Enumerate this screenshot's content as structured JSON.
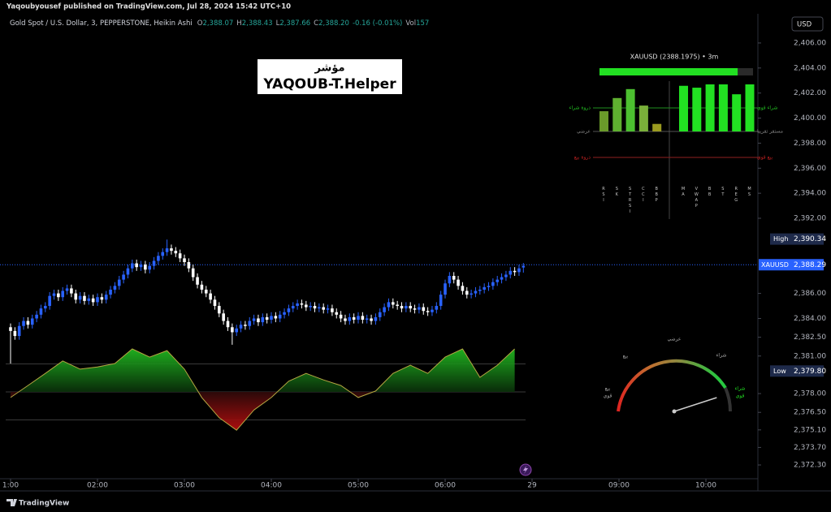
{
  "header": {
    "published": "Yaqoubyousef published on TradingView.com, Jul 28, 2024 15:42 UTC+10",
    "symbol": "Gold Spot / U.S. Dollar, 3, PEPPERSTONE, Heikin Ashi",
    "ohlc": [
      {
        "key": "O",
        "value": "2,388.07"
      },
      {
        "key": "H",
        "value": "2,388.43"
      },
      {
        "key": "L",
        "value": "2,387.66"
      },
      {
        "key": "C",
        "value": "2,388.20"
      }
    ],
    "change": "-0.16 (-0.01%)",
    "volume": {
      "key": "Vol",
      "value": "157"
    }
  },
  "currency": "USD",
  "footer": {
    "brand": "TradingView"
  },
  "chart_data": {
    "type": "candlestick",
    "up_color": "#2962ff",
    "down_color": "#ffffff",
    "x": [
      0,
      1,
      2,
      3,
      4,
      5,
      6,
      7,
      8,
      9,
      10,
      11,
      12,
      13,
      14,
      15,
      16,
      17,
      18,
      19,
      20,
      21,
      22,
      23,
      24,
      25,
      26,
      27,
      28,
      29,
      30,
      31,
      32,
      33,
      34,
      35,
      36,
      37,
      38,
      39,
      40,
      41,
      42,
      43,
      44,
      45,
      46,
      47,
      48,
      49,
      50,
      51,
      52,
      53,
      54,
      55,
      56,
      57,
      58,
      59,
      60,
      61,
      62,
      63,
      64,
      65,
      66,
      67,
      68,
      69,
      70,
      71,
      72,
      73,
      74,
      75,
      76,
      77,
      78,
      79,
      80,
      81,
      82,
      83,
      84,
      85,
      86,
      87,
      88,
      89,
      90,
      91,
      92,
      93,
      94,
      95,
      96,
      97,
      98,
      99,
      100,
      101,
      102,
      103,
      104,
      105,
      106,
      107,
      108,
      109,
      110,
      111,
      112,
      113,
      114,
      115,
      116,
      117,
      118
    ],
    "open": [
      2383.3,
      2383.0,
      2382.6,
      2383.4,
      2383.8,
      2383.5,
      2384.0,
      2384.3,
      2384.8,
      2385.0,
      2385.8,
      2386.0,
      2385.7,
      2386.2,
      2386.4,
      2386.0,
      2385.5,
      2385.8,
      2385.4,
      2385.6,
      2385.3,
      2385.7,
      2385.5,
      2385.9,
      2386.3,
      2386.6,
      2387.1,
      2387.5,
      2388.0,
      2388.4,
      2388.1,
      2388.3,
      2387.9,
      2388.2,
      2388.6,
      2389.0,
      2389.3,
      2389.6,
      2389.4,
      2389.2,
      2388.8,
      2388.5,
      2388.0,
      2387.3,
      2386.7,
      2386.3,
      2386.0,
      2385.5,
      2385.0,
      2384.4,
      2383.8,
      2383.3,
      2382.9,
      2383.2,
      2383.5,
      2383.4,
      2383.8,
      2384.0,
      2383.7,
      2384.1,
      2383.9,
      2384.2,
      2384.0,
      2384.3,
      2384.5,
      2384.8,
      2385.0,
      2385.2,
      2385.1,
      2384.9,
      2385.0,
      2384.8,
      2384.9,
      2384.7,
      2384.8,
      2384.5,
      2384.3,
      2384.0,
      2383.8,
      2384.1,
      2383.9,
      2384.2,
      2383.9,
      2384.0,
      2383.8,
      2384.1,
      2384.5,
      2384.9,
      2385.3,
      2385.1,
      2385.0,
      2384.8,
      2385.0,
      2384.8,
      2384.7,
      2384.9,
      2384.6,
      2384.5,
      2384.7,
      2385.0,
      2385.9,
      2386.8,
      2387.4,
      2387.1,
      2386.6,
      2386.2,
      2385.9,
      2386.0,
      2386.2,
      2386.3,
      2386.5,
      2386.6,
      2386.9,
      2387.1,
      2387.3,
      2387.5,
      2387.8,
      2387.7,
      2388.07
    ],
    "high": [
      2383.6,
      2383.3,
      2383.7,
      2384.1,
      2384.1,
      2384.3,
      2384.6,
      2385.1,
      2385.3,
      2386.1,
      2386.3,
      2386.3,
      2386.5,
      2386.7,
      2386.7,
      2386.3,
      2386.1,
      2386.1,
      2385.9,
      2385.9,
      2386.0,
      2386.0,
      2386.2,
      2386.6,
      2386.9,
      2387.4,
      2387.8,
      2388.3,
      2388.7,
      2388.7,
      2388.6,
      2388.6,
      2388.5,
      2388.9,
      2389.3,
      2389.6,
      2390.3,
      2389.9,
      2389.7,
      2389.5,
      2389.1,
      2388.8,
      2388.3,
      2387.6,
      2387.0,
      2386.6,
      2386.3,
      2385.8,
      2385.3,
      2384.7,
      2384.1,
      2383.6,
      2383.5,
      2383.8,
      2383.8,
      2384.1,
      2384.3,
      2384.3,
      2384.4,
      2384.4,
      2384.5,
      2384.5,
      2384.6,
      2384.8,
      2385.1,
      2385.3,
      2385.5,
      2385.5,
      2385.4,
      2385.3,
      2385.3,
      2385.2,
      2385.2,
      2385.1,
      2385.1,
      2384.8,
      2384.6,
      2384.3,
      2384.4,
      2384.4,
      2384.5,
      2384.5,
      2384.3,
      2384.3,
      2384.4,
      2384.8,
      2385.2,
      2385.6,
      2385.6,
      2385.4,
      2385.3,
      2385.3,
      2385.3,
      2385.1,
      2385.2,
      2385.2,
      2384.9,
      2385.0,
      2385.3,
      2386.2,
      2387.1,
      2387.7,
      2387.7,
      2387.4,
      2386.9,
      2386.5,
      2386.3,
      2386.5,
      2386.6,
      2386.8,
      2386.9,
      2387.2,
      2387.4,
      2387.6,
      2387.8,
      2388.1,
      2388.1,
      2388.3,
      2388.43
    ],
    "low": [
      2380.4,
      2382.3,
      2382.3,
      2383.1,
      2383.2,
      2383.2,
      2383.7,
      2384.0,
      2384.5,
      2384.7,
      2385.5,
      2385.4,
      2385.4,
      2385.9,
      2385.7,
      2385.2,
      2385.2,
      2385.1,
      2385.1,
      2385.0,
      2385.0,
      2385.2,
      2385.2,
      2385.6,
      2386.0,
      2386.3,
      2386.8,
      2387.2,
      2387.7,
      2387.8,
      2387.8,
      2387.6,
      2387.6,
      2387.9,
      2388.3,
      2388.7,
      2389.0,
      2389.1,
      2388.9,
      2388.5,
      2388.2,
      2387.7,
      2387.0,
      2386.4,
      2386.0,
      2385.7,
      2385.2,
      2384.7,
      2384.1,
      2383.5,
      2383.0,
      2381.9,
      2382.6,
      2382.9,
      2383.1,
      2383.1,
      2383.5,
      2383.4,
      2383.4,
      2383.6,
      2383.6,
      2383.7,
      2383.7,
      2384.0,
      2384.2,
      2384.5,
      2384.7,
      2384.8,
      2384.6,
      2384.6,
      2384.5,
      2384.5,
      2384.4,
      2384.4,
      2384.2,
      2384.0,
      2383.7,
      2383.5,
      2383.5,
      2383.6,
      2383.6,
      2383.6,
      2383.6,
      2383.5,
      2383.5,
      2383.8,
      2384.2,
      2384.6,
      2384.8,
      2384.7,
      2384.5,
      2384.5,
      2384.5,
      2384.4,
      2384.4,
      2384.3,
      2384.2,
      2384.2,
      2384.4,
      2384.7,
      2385.6,
      2386.5,
      2386.8,
      2386.3,
      2385.9,
      2385.6,
      2385.6,
      2385.7,
      2385.9,
      2386.0,
      2386.2,
      2386.3,
      2386.6,
      2386.8,
      2387.0,
      2387.2,
      2387.4,
      2387.4,
      2387.66
    ],
    "close": [
      2383.0,
      2382.6,
      2383.4,
      2383.8,
      2383.5,
      2384.0,
      2384.3,
      2384.8,
      2385.0,
      2385.8,
      2386.0,
      2385.7,
      2386.2,
      2386.4,
      2386.0,
      2385.5,
      2385.8,
      2385.4,
      2385.6,
      2385.3,
      2385.7,
      2385.5,
      2385.9,
      2386.3,
      2386.6,
      2387.1,
      2387.5,
      2388.0,
      2388.4,
      2388.1,
      2388.3,
      2387.9,
      2388.2,
      2388.6,
      2389.0,
      2389.3,
      2389.6,
      2389.4,
      2389.2,
      2388.8,
      2388.5,
      2388.0,
      2387.3,
      2386.7,
      2386.3,
      2386.0,
      2385.5,
      2385.0,
      2384.4,
      2383.8,
      2383.3,
      2382.9,
      2383.2,
      2383.5,
      2383.4,
      2383.8,
      2384.0,
      2383.7,
      2384.1,
      2383.9,
      2384.2,
      2384.0,
      2384.3,
      2384.5,
      2384.8,
      2385.0,
      2385.2,
      2385.1,
      2384.9,
      2385.0,
      2384.8,
      2384.9,
      2384.7,
      2384.8,
      2384.5,
      2384.3,
      2384.0,
      2383.8,
      2384.1,
      2383.9,
      2384.2,
      2383.9,
      2384.0,
      2383.8,
      2384.1,
      2384.5,
      2384.9,
      2385.3,
      2385.1,
      2385.0,
      2384.8,
      2385.0,
      2384.8,
      2384.7,
      2384.9,
      2384.6,
      2384.5,
      2384.7,
      2385.0,
      2385.9,
      2386.8,
      2387.4,
      2387.1,
      2386.6,
      2386.2,
      2385.9,
      2386.0,
      2386.2,
      2386.3,
      2386.5,
      2386.6,
      2386.9,
      2387.1,
      2387.3,
      2387.5,
      2387.8,
      2387.7,
      2388.0,
      2388.2
    ],
    "xlim": [
      -2.43,
      171.96
    ],
    "xticks": [
      {
        "value": 0,
        "label": "1:00"
      },
      {
        "value": 20,
        "label": "02:00"
      },
      {
        "value": 40,
        "label": "03:00"
      },
      {
        "value": 60,
        "label": "04:00"
      },
      {
        "value": 80,
        "label": "05:00"
      },
      {
        "value": 100,
        "label": "06:00"
      },
      {
        "value": 120,
        "label": "29"
      },
      {
        "value": 140,
        "label": "09:00"
      },
      {
        "value": 160,
        "label": "10:00"
      }
    ],
    "ylim": [
      2371.2,
      2408.33
    ],
    "yticks": [
      {
        "value": 2406,
        "label": "2,406.00"
      },
      {
        "value": 2404,
        "label": "2,404.00"
      },
      {
        "value": 2402,
        "label": "2,402.00"
      },
      {
        "value": 2400,
        "label": "2,400.00"
      },
      {
        "value": 2398,
        "label": "2,398.00"
      },
      {
        "value": 2396,
        "label": "2,396.00"
      },
      {
        "value": 2394,
        "label": "2,394.00"
      },
      {
        "value": 2392,
        "label": "2,392.00"
      },
      {
        "value": 2386,
        "label": "2,386.00"
      },
      {
        "value": 2384,
        "label": "2,384.00"
      },
      {
        "value": 2382.5,
        "label": "2,382.50"
      },
      {
        "value": 2381,
        "label": "2,381.00"
      },
      {
        "value": 2378,
        "label": "2,378.00"
      },
      {
        "value": 2376.5,
        "label": "2,376.50"
      },
      {
        "value": 2375.1,
        "label": "2,375.10"
      },
      {
        "value": 2373.7,
        "label": "2,373.70"
      },
      {
        "value": 2372.3,
        "label": "2,372.30"
      }
    ],
    "last_price": {
      "symbol": "XAUUSD",
      "price": {
        "value": 2388.29,
        "label": "2,388.29"
      }
    },
    "high_marker": {
      "label": "High",
      "price": {
        "value": 2390.34,
        "label": "2,390.34"
      }
    },
    "low_marker": {
      "label": "Low",
      "price": {
        "value": 2379.8,
        "label": "2,379.80"
      }
    },
    "indicator": {
      "title_ar": "مؤشر",
      "title": "YAQOUB-T.Helper"
    },
    "oscillator": {
      "x": [
        0,
        4,
        8,
        12,
        16,
        20,
        24,
        28,
        32,
        36,
        40,
        44,
        48,
        52,
        56,
        60,
        64,
        68,
        72,
        76,
        80,
        84,
        88,
        92,
        96,
        100,
        104,
        108,
        112,
        116
      ],
      "values": [
        -13,
        15,
        43,
        72,
        53,
        58,
        66,
        100,
        81,
        96,
        53,
        -13,
        -60,
        -89,
        -42,
        -13,
        25,
        43,
        28,
        15,
        -13,
        2,
        43,
        62,
        43,
        81,
        100,
        34,
        62,
        100
      ],
      "ylim": [
        -100,
        100
      ],
      "levels": [
        65,
        0,
        -65
      ],
      "line_color": "#b5a642"
    },
    "dashboard": {
      "title": "XAUUSD (2388.1975) • 3m",
      "progress": 90,
      "progress_max": 100,
      "ylim": [
        0,
        100
      ],
      "left_labels": [
        "ذروة شراء",
        "عرضي",
        "ذروة بيع"
      ],
      "right_labels": [
        "شراء قوي",
        "مستقر تقريبا",
        "بيع قوي"
      ],
      "groups": [
        {
          "categories": [
            "RSI",
            "SK",
            "STRSI",
            "CCI",
            "BBP"
          ],
          "values": [
            43,
            71,
            90,
            55,
            16
          ],
          "colors": [
            "#6a9a2a",
            "#5fb030",
            "#4cc030",
            "#7ab03a",
            "#9a9a20"
          ]
        },
        {
          "categories": [
            "MA",
            "VWAP",
            "BB",
            "ST",
            "REG",
            "MS"
          ],
          "values": [
            97,
            93,
            100,
            100,
            79,
            100
          ],
          "colors": [
            "#22e022",
            "#22e022",
            "#22e022",
            "#22e022",
            "#22e022",
            "#22e022"
          ]
        }
      ]
    },
    "gauge": {
      "value": 90,
      "range": [
        0,
        100
      ],
      "top_label": "عرضي",
      "left_label": "بيع",
      "right_label": "شراء",
      "strong_sell": [
        "بيع",
        "قوي"
      ],
      "strong_buy": [
        "شراء",
        "قوي"
      ]
    }
  }
}
